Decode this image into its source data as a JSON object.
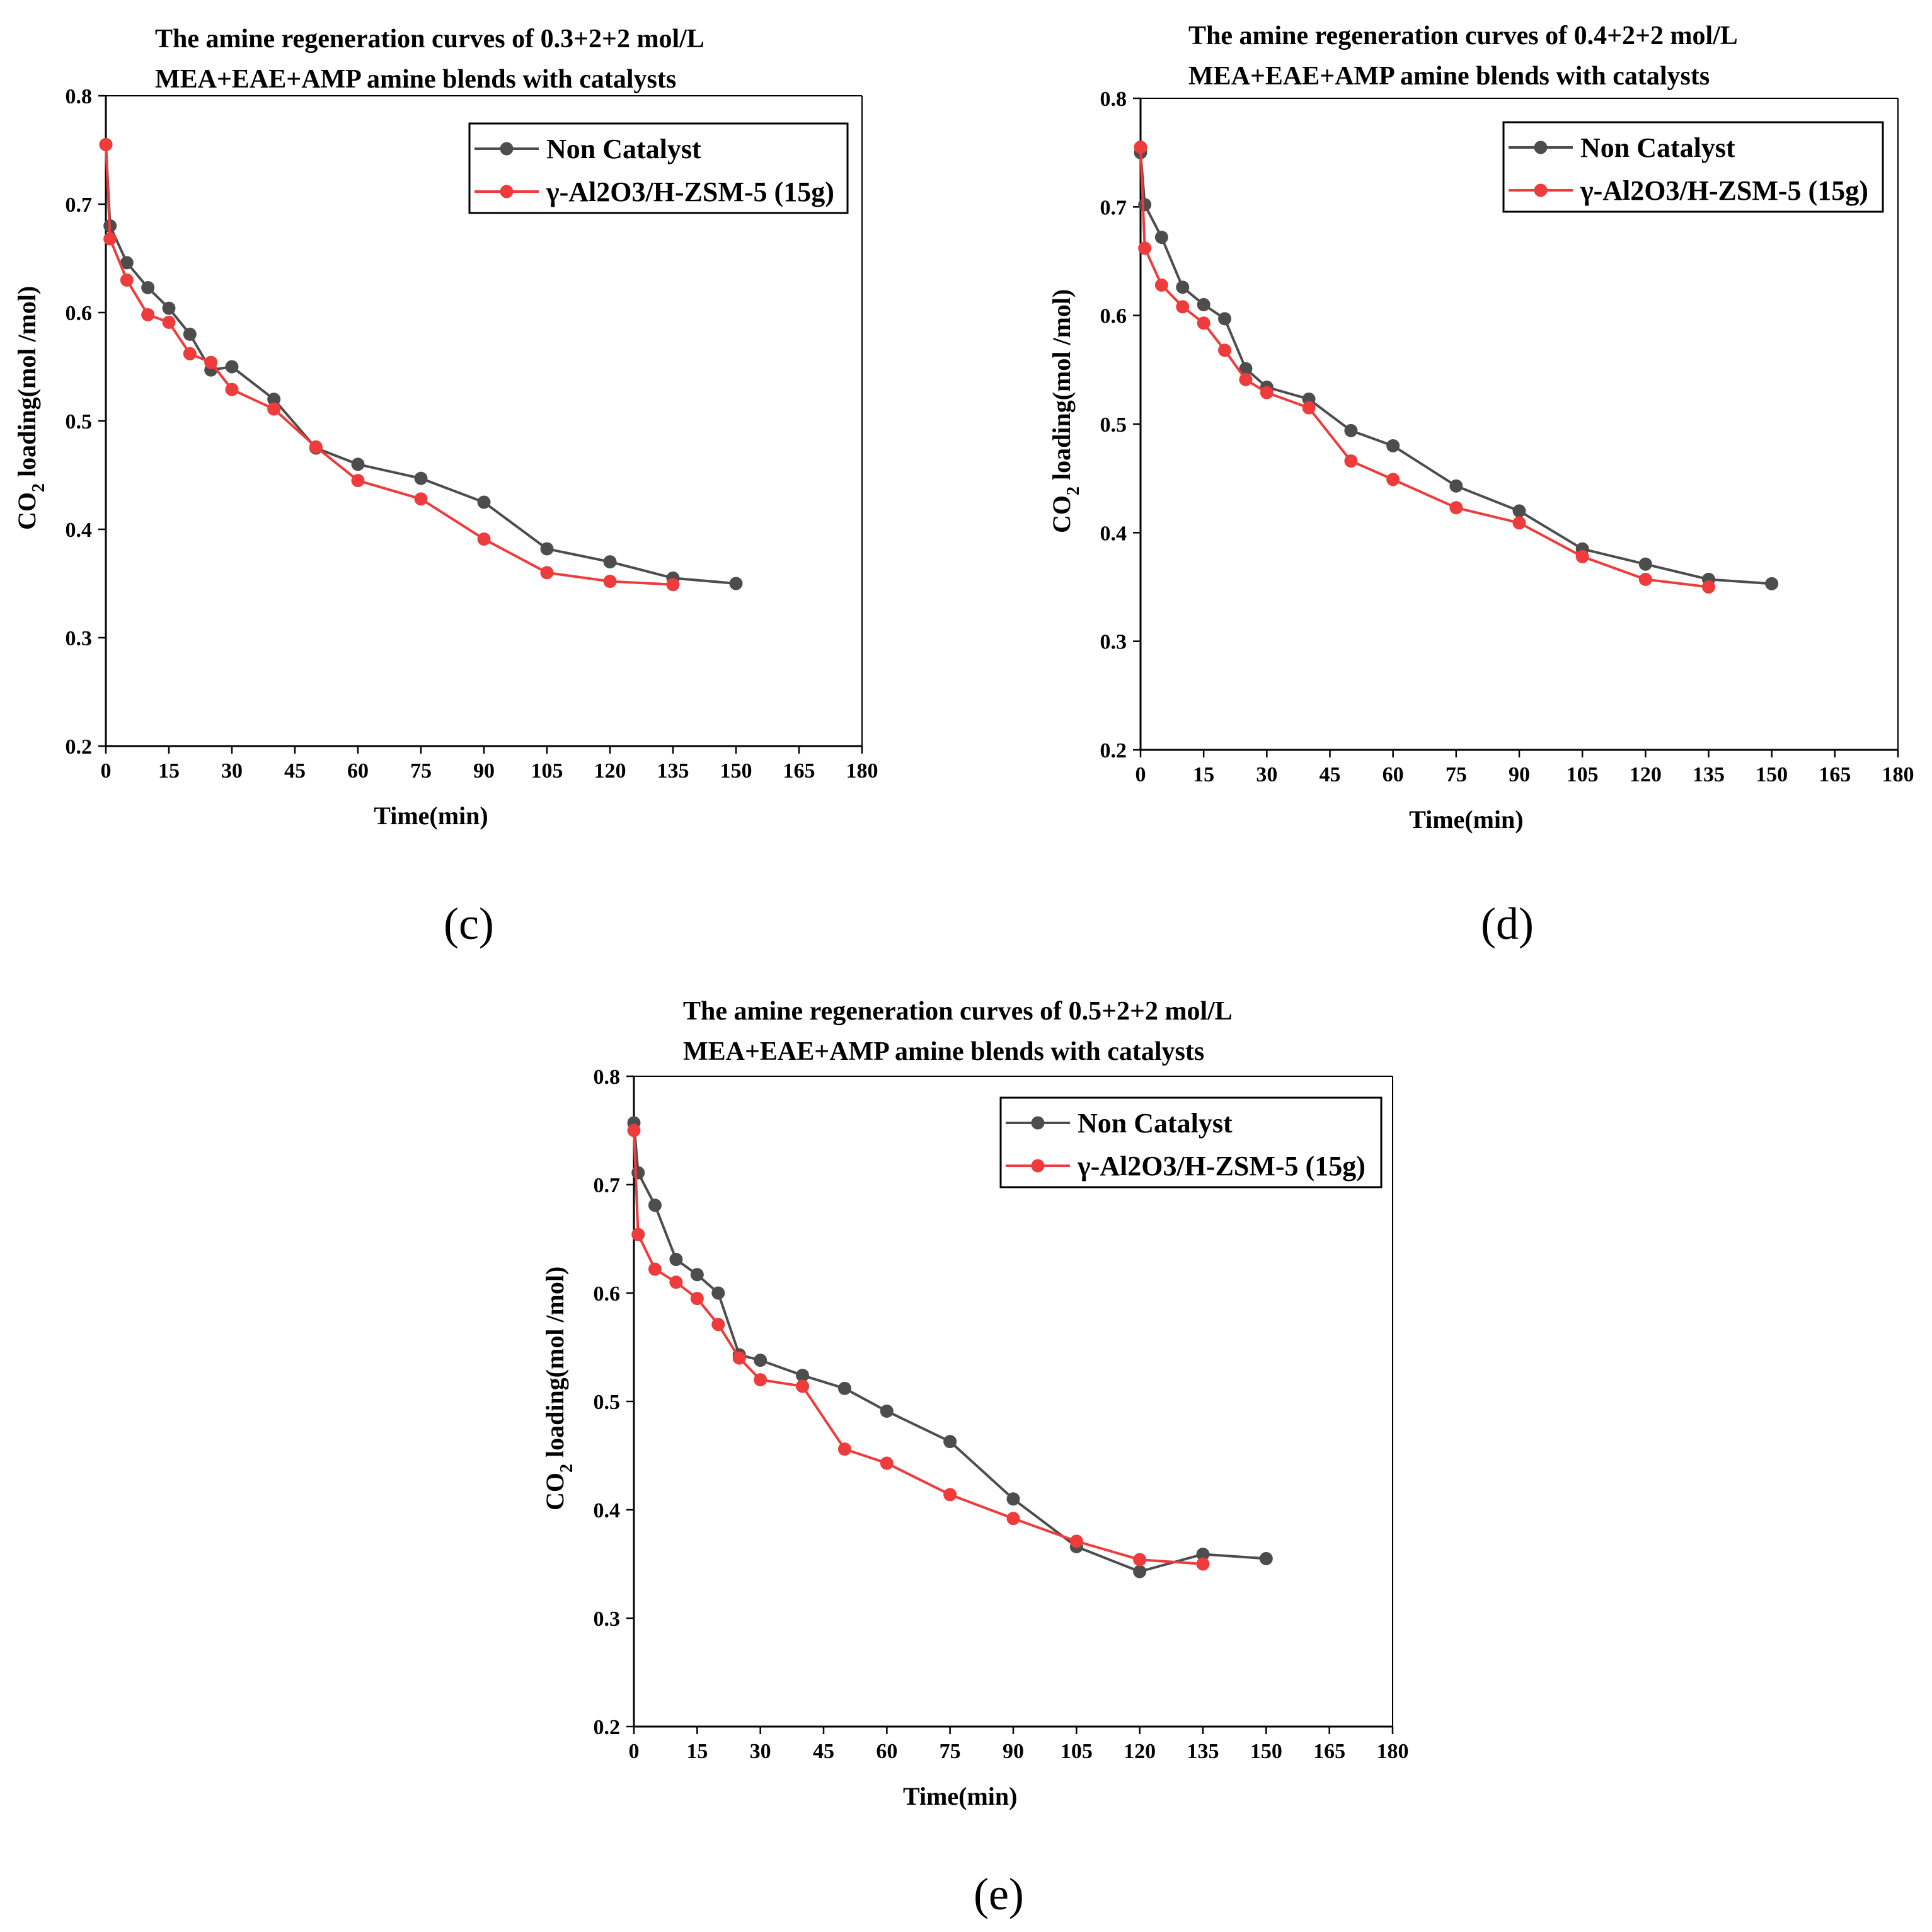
{
  "colors": {
    "non_catalyst": "#4d4d4d",
    "catalyst": "#ee3b3b",
    "axis": "#000000"
  },
  "panels": [
    {
      "label": "(c)"
    },
    {
      "label": "(d)"
    },
    {
      "label": "(e)"
    }
  ],
  "chart_data": [
    {
      "type": "line",
      "title": [
        "The amine regeneration curves of  0.3+2+2 mol/L",
        "MEA+EAE+AMP amine blends with catalysts"
      ],
      "xlabel": "Time(min)",
      "ylabel": "CO2 loading(mol /mol)",
      "ylabel_parts": {
        "main": "CO",
        "sub": "2",
        "rest": " loading(mol /mol)"
      },
      "xlim": [
        0,
        180
      ],
      "ylim": [
        0.2,
        0.8
      ],
      "xticks": [
        "0",
        "15",
        "30",
        "45",
        "60",
        "75",
        "90",
        "105",
        "120",
        "135",
        "150",
        "165",
        "180"
      ],
      "yticks": [
        "0.2",
        "0.3",
        "0.4",
        "0.5",
        "0.6",
        "0.7",
        "0.8"
      ],
      "legend_position": "top-right",
      "series": [
        {
          "name": "Non Catalyst",
          "x": [
            0,
            1,
            5,
            10,
            15,
            20,
            25,
            30,
            40,
            50,
            60,
            75,
            90,
            105,
            120,
            135,
            150
          ],
          "y": [
            0.755,
            0.68,
            0.646,
            0.623,
            0.604,
            0.58,
            0.547,
            0.55,
            0.52,
            0.475,
            0.46,
            0.447,
            0.425,
            0.382,
            0.37,
            0.355,
            0.35
          ]
        },
        {
          "name": "γ-Al2O3/H-ZSM-5 (15g)",
          "x": [
            0,
            1,
            5,
            10,
            15,
            20,
            25,
            30,
            40,
            50,
            60,
            75,
            90,
            105,
            120,
            135
          ],
          "y": [
            0.755,
            0.668,
            0.63,
            0.598,
            0.591,
            0.562,
            0.554,
            0.529,
            0.511,
            0.476,
            0.445,
            0.428,
            0.391,
            0.36,
            0.352,
            0.349
          ]
        }
      ]
    },
    {
      "type": "line",
      "title": [
        "The amine regeneration curves of  0.4+2+2 mol/L",
        "MEA+EAE+AMP amine blends with catalysts"
      ],
      "xlabel": "Time(min)",
      "ylabel": "CO2 loading(mol /mol)",
      "ylabel_parts": {
        "main": "CO",
        "sub": "2",
        "rest": " loading(mol /mol)"
      },
      "xlim": [
        0,
        180
      ],
      "ylim": [
        0.2,
        0.8
      ],
      "xticks": [
        "0",
        "15",
        "30",
        "45",
        "60",
        "75",
        "90",
        "105",
        "120",
        "135",
        "150",
        "165",
        "180"
      ],
      "yticks": [
        "0.2",
        "0.3",
        "0.4",
        "0.5",
        "0.6",
        "0.7",
        "0.8"
      ],
      "legend_position": "top-right",
      "series": [
        {
          "name": "Non Catalyst",
          "x": [
            0,
            1,
            5,
            10,
            15,
            20,
            25,
            30,
            40,
            50,
            60,
            75,
            90,
            105,
            120,
            135,
            150
          ],
          "y": [
            0.75,
            0.702,
            0.672,
            0.626,
            0.61,
            0.597,
            0.551,
            0.534,
            0.523,
            0.494,
            0.48,
            0.443,
            0.42,
            0.385,
            0.371,
            0.357,
            0.353
          ]
        },
        {
          "name": "γ-Al2O3/H-ZSM-5 (15g)",
          "x": [
            0,
            1,
            5,
            10,
            15,
            20,
            25,
            30,
            40,
            50,
            60,
            75,
            90,
            105,
            120,
            135
          ],
          "y": [
            0.755,
            0.662,
            0.628,
            0.608,
            0.593,
            0.568,
            0.541,
            0.529,
            0.515,
            0.466,
            0.449,
            0.423,
            0.409,
            0.378,
            0.357,
            0.35
          ]
        }
      ]
    },
    {
      "type": "line",
      "title": [
        "The amine regeneration curves of  0.5+2+2 mol/L",
        "MEA+EAE+AMP amine blends with catalysts"
      ],
      "xlabel": "Time(min)",
      "ylabel": "CO2 loading(mol /mol)",
      "ylabel_parts": {
        "main": "CO",
        "sub": "2",
        "rest": " loading(mol /mol)"
      },
      "xlim": [
        0,
        180
      ],
      "ylim": [
        0.2,
        0.8
      ],
      "xticks": [
        "0",
        "15",
        "30",
        "45",
        "60",
        "75",
        "90",
        "105",
        "120",
        "135",
        "150",
        "165",
        "180"
      ],
      "yticks": [
        "0.2",
        "0.3",
        "0.4",
        "0.5",
        "0.6",
        "0.7",
        "0.8"
      ],
      "legend_position": "top-right",
      "series": [
        {
          "name": "Non Catalyst",
          "x": [
            0,
            1,
            5,
            10,
            15,
            20,
            25,
            30,
            40,
            50,
            60,
            75,
            90,
            105,
            120,
            135,
            150
          ],
          "y": [
            0.757,
            0.711,
            0.681,
            0.631,
            0.617,
            0.6,
            0.543,
            0.538,
            0.524,
            0.512,
            0.491,
            0.463,
            0.41,
            0.366,
            0.343,
            0.359,
            0.355
          ]
        },
        {
          "name": "γ-Al2O3/H-ZSM-5 (15g)",
          "x": [
            0,
            1,
            5,
            10,
            15,
            20,
            25,
            30,
            40,
            50,
            60,
            75,
            90,
            105,
            120,
            135
          ],
          "y": [
            0.75,
            0.654,
            0.622,
            0.61,
            0.595,
            0.571,
            0.54,
            0.52,
            0.514,
            0.456,
            0.443,
            0.414,
            0.392,
            0.371,
            0.354,
            0.35
          ]
        }
      ]
    }
  ]
}
